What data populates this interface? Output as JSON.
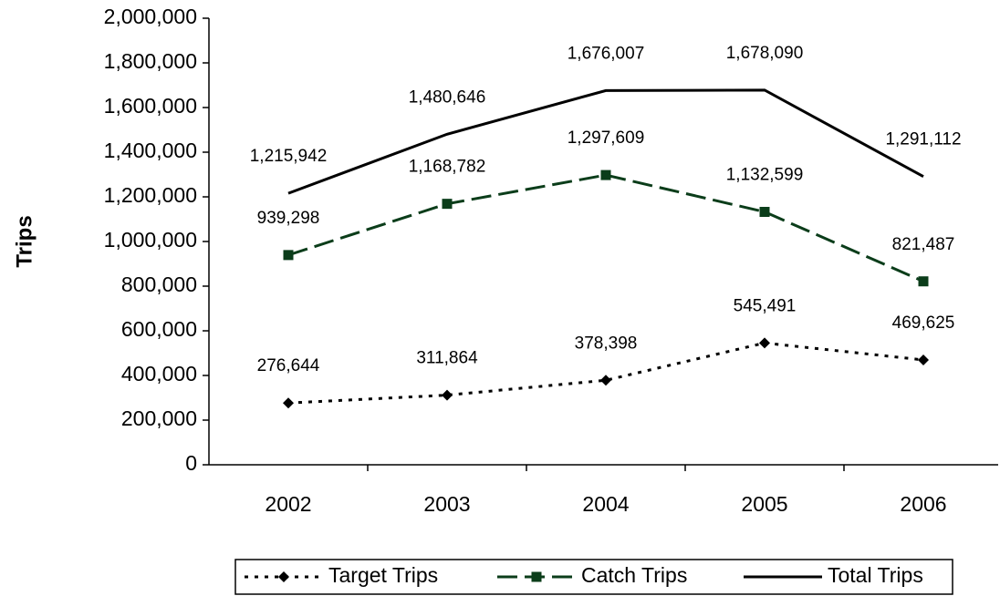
{
  "chart_data": {
    "type": "line",
    "y_label": "Trips",
    "categories": [
      "2002",
      "2003",
      "2004",
      "2005",
      "2006"
    ],
    "series": [
      {
        "name": "Target Trips",
        "color": "#000000",
        "dash": "4,7",
        "marker": "diamond",
        "values": [
          276644,
          311864,
          378398,
          545491,
          469625
        ],
        "value_labels": [
          "276,644",
          "311,864",
          "378,398",
          "545,491",
          "469,625"
        ]
      },
      {
        "name": "Catch Trips",
        "color": "#0b3d1a",
        "dash": "22,8",
        "marker": "square",
        "values": [
          939298,
          1168782,
          1297609,
          1132599,
          821487
        ],
        "value_labels": [
          "939,298",
          "1,168,782",
          "1,297,609",
          "1,132,599",
          "821,487"
        ]
      },
      {
        "name": "Total Trips",
        "color": "#000000",
        "dash": "none",
        "marker": "none",
        "values": [
          1215942,
          1480646,
          1676007,
          1678090,
          1291112
        ],
        "value_labels": [
          "1,215,942",
          "1,480,646",
          "1,676,007",
          "1,678,090",
          "1,291,112"
        ]
      }
    ],
    "ylim": [
      0,
      2000000
    ],
    "yticks": [
      0,
      {
        "value": 200000,
        "label": "200,000"
      },
      {
        "value": 400000,
        "label": "400,000"
      },
      {
        "value": 600000,
        "label": "600,000"
      },
      {
        "value": 800000,
        "label": "800,000"
      },
      {
        "value": 1000000,
        "label": "1,000,000"
      },
      {
        "value": 1200000,
        "label": "1,200,000"
      },
      {
        "value": 1400000,
        "label": "1,400,000"
      },
      {
        "value": 1600000,
        "label": "1,600,000"
      },
      {
        "value": 1800000,
        "label": "1,800,000"
      },
      {
        "value": 2000000,
        "label": "2,000,000"
      }
    ],
    "grid": false,
    "legend": "bottom"
  }
}
